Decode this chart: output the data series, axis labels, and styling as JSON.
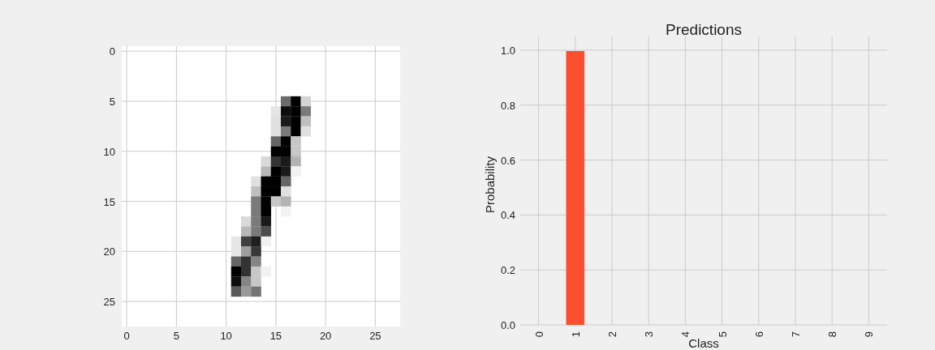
{
  "chart_data": [
    {
      "type": "scatter",
      "marker": "square",
      "grid": true,
      "xlim": [
        -0.5,
        27.5
      ],
      "ylim": [
        27.5,
        -0.5
      ],
      "xticks": [
        0,
        5,
        10,
        15,
        20,
        25
      ],
      "yticks": [
        0,
        5,
        10,
        15,
        20,
        25
      ],
      "x": [
        16,
        17,
        18,
        15,
        16,
        17,
        18,
        15,
        16,
        17,
        18,
        15,
        16,
        17,
        18,
        15,
        16,
        17,
        15,
        16,
        17,
        14,
        15,
        16,
        17,
        14,
        15,
        16,
        17,
        13,
        14,
        15,
        16,
        13,
        14,
        15,
        16,
        13,
        14,
        15,
        16,
        13,
        14,
        16,
        12,
        13,
        14,
        12,
        13,
        14,
        11,
        12,
        13,
        14,
        11,
        12,
        13,
        11,
        12,
        13,
        11,
        12,
        13,
        14,
        11,
        12,
        13,
        11,
        12,
        13
      ],
      "values": [
        5,
        5,
        5,
        6,
        6,
        6,
        6,
        7,
        7,
        7,
        7,
        8,
        8,
        8,
        8,
        9,
        9,
        9,
        10,
        10,
        10,
        11,
        11,
        11,
        11,
        12,
        12,
        12,
        12,
        13,
        13,
        13,
        13,
        14,
        14,
        14,
        14,
        15,
        15,
        15,
        15,
        16,
        16,
        16,
        17,
        17,
        17,
        18,
        18,
        18,
        19,
        19,
        19,
        19,
        20,
        20,
        20,
        21,
        21,
        21,
        22,
        22,
        22,
        22,
        23,
        23,
        23,
        24,
        24,
        24
      ],
      "colors": [
        "#6b6b6b",
        "#000000",
        "#d4d4d4",
        "#e6e6e6",
        "#0d0d0d",
        "#000000",
        "#7a7a7a",
        "#e0e0e0",
        "#1a1a1a",
        "#000000",
        "#bfbfbf",
        "#e0e0e0",
        "#7a7a7a",
        "#000000",
        "#e0e0e0",
        "#666666",
        "#000000",
        "#c7c7c7",
        "#000000",
        "#000000",
        "#c7c7c7",
        "#d9d9d9",
        "#333333",
        "#1a1a1a",
        "#b3b3b3",
        "#b8b8b8",
        "#000000",
        "#1a1a1a",
        "#f2f2f2",
        "#e0e0e0",
        "#000000",
        "#000000",
        "#666666",
        "#bfbfbf",
        "#000000",
        "#000000",
        "#e0e0e0",
        "#7a7a7a",
        "#000000",
        "#c7c7c7",
        "#b3b3b3",
        "#7a7a7a",
        "#000000",
        "#f2f2f2",
        "#d9d9d9",
        "#7a7a7a",
        "#1a1a1a",
        "#b8b8b8",
        "#7a7a7a",
        "#4d4d4d",
        "#e6e6e6",
        "#404040",
        "#1f1f1f",
        "#f2f2f2",
        "#e6e6e6",
        "#9e9e9e",
        "#383838",
        "#666666",
        "#333333",
        "#858585",
        "#000000",
        "#333333",
        "#c7c7c7",
        "#f2f2f2",
        "#0d0d0d",
        "#858585",
        "#c7c7c7",
        "#595959",
        "#999999",
        "#737373"
      ]
    },
    {
      "type": "bar",
      "title": "Predictions",
      "xlabel": "Class",
      "ylabel": "Probability",
      "categories": [
        "0",
        "1",
        "2",
        "3",
        "4",
        "5",
        "6",
        "7",
        "8",
        "9"
      ],
      "values": [
        0,
        0.997,
        0,
        0,
        0,
        0,
        0,
        0,
        0,
        0
      ],
      "color": "#fc4f30",
      "ylim": [
        0,
        1.05
      ],
      "yticks": [
        {
          "value": 0,
          "label": "0.0"
        },
        {
          "value": 0.2,
          "label": "0.2"
        },
        {
          "value": 0.4,
          "label": "0.4"
        },
        {
          "value": 0.6,
          "label": "0.6"
        },
        {
          "value": 0.8,
          "label": "0.8"
        },
        {
          "value": 1,
          "label": "1.0"
        }
      ],
      "grid": true
    }
  ]
}
